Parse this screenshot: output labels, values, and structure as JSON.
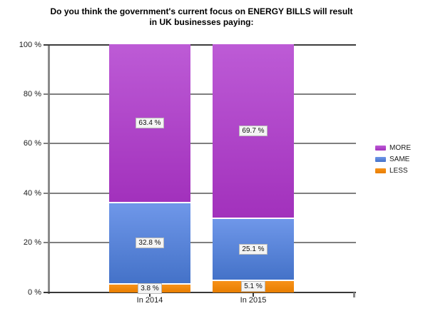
{
  "title": {
    "line1": "Do you think the government's current focus on ENERGY BILLS will result",
    "line2": "in UK businesses paying:"
  },
  "chart_data": {
    "type": "bar",
    "stacked": true,
    "title": "Do you think the government's current focus on ENERGY BILLS will result in UK businesses paying:",
    "categories": [
      "In 2014",
      "In 2015"
    ],
    "series": [
      {
        "name": "MORE",
        "values": [
          63.4,
          69.7
        ],
        "labels": [
          "63.4 %",
          "69.7 %"
        ],
        "color_top": "#bd5bd6",
        "color_bottom": "#a231bc"
      },
      {
        "name": "SAME",
        "values": [
          32.8,
          25.1
        ],
        "labels": [
          "32.8 %",
          "25.1 %"
        ],
        "color_top": "#6f97e9",
        "color_bottom": "#4472c8"
      },
      {
        "name": "LESS",
        "values": [
          3.8,
          5.1
        ],
        "labels": [
          "3.8 %",
          "5.1 %"
        ],
        "color_top": "#f7921a",
        "color_bottom": "#e87e00"
      }
    ],
    "xlabel": "",
    "ylabel": "",
    "ylim": [
      0,
      100
    ],
    "y_ticks": [
      "0 %",
      "20 %",
      "40 %",
      "60 %",
      "80 %",
      "100 %"
    ],
    "grid": true,
    "legend_position": "right",
    "colors": {
      "gridline": "#7f7f7f",
      "gridline_top": "#3d3d3d",
      "axis": "#383838",
      "y_axis_line": "#8a8a8a",
      "label_box_bg": "#f4f4f4",
      "label_box_border": "#b9b9b9"
    }
  }
}
